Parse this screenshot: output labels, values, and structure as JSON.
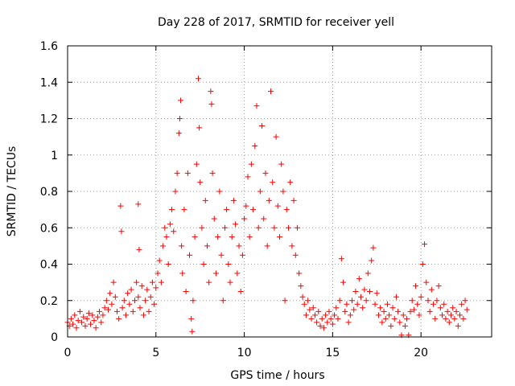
{
  "chart_data": {
    "type": "scatter",
    "title": "Day 228 of 2017, SRMTID for receiver yell",
    "xlabel": "GPS time / hours",
    "ylabel": "SRMTID / TECUs",
    "xlim": [
      0,
      24
    ],
    "ylim": [
      0,
      1.6
    ],
    "x_ticks": [
      0,
      5,
      10,
      15,
      20
    ],
    "x_tick_labels": [
      "0",
      "5",
      "10",
      "15",
      "20"
    ],
    "y_ticks": [
      0,
      0.2,
      0.4,
      0.6,
      0.8,
      1,
      1.2,
      1.4,
      1.6
    ],
    "y_tick_labels": [
      "0",
      "0.2",
      "0.4",
      "0.6",
      "0.8",
      "1",
      "1.2",
      "1.4",
      "1.6"
    ],
    "grid": true,
    "marker": "+",
    "color": "#ff0000",
    "series": [
      {
        "name": "SRMTID",
        "points": [
          [
            0.0,
            0.08
          ],
          [
            0.1,
            0.06
          ],
          [
            0.2,
            0.1
          ],
          [
            0.3,
            0.07
          ],
          [
            0.4,
            0.12
          ],
          [
            0.5,
            0.05
          ],
          [
            0.6,
            0.09
          ],
          [
            0.7,
            0.14
          ],
          [
            0.8,
            0.08
          ],
          [
            0.9,
            0.11
          ],
          [
            1.0,
            0.06
          ],
          [
            1.1,
            0.1
          ],
          [
            1.2,
            0.13
          ],
          [
            1.3,
            0.07
          ],
          [
            1.4,
            0.12
          ],
          [
            1.5,
            0.09
          ],
          [
            1.6,
            0.05
          ],
          [
            1.7,
            0.11
          ],
          [
            1.8,
            0.14
          ],
          [
            1.9,
            0.08
          ],
          [
            2.0,
            0.12
          ],
          [
            2.1,
            0.16
          ],
          [
            2.2,
            0.2
          ],
          [
            2.3,
            0.15
          ],
          [
            2.4,
            0.24
          ],
          [
            2.5,
            0.18
          ],
          [
            2.6,
            0.3
          ],
          [
            2.7,
            0.22
          ],
          [
            2.8,
            0.14
          ],
          [
            2.9,
            0.1
          ],
          [
            3.0,
            0.72
          ],
          [
            3.05,
            0.58
          ],
          [
            3.1,
            0.16
          ],
          [
            3.2,
            0.2
          ],
          [
            3.3,
            0.12
          ],
          [
            3.4,
            0.24
          ],
          [
            3.5,
            0.18
          ],
          [
            3.6,
            0.26
          ],
          [
            3.7,
            0.14
          ],
          [
            3.8,
            0.2
          ],
          [
            3.9,
            0.3
          ],
          [
            4.0,
            0.22
          ],
          [
            4.0,
            0.73
          ],
          [
            4.05,
            0.48
          ],
          [
            4.1,
            0.16
          ],
          [
            4.2,
            0.28
          ],
          [
            4.3,
            0.12
          ],
          [
            4.4,
            0.2
          ],
          [
            4.5,
            0.26
          ],
          [
            4.6,
            0.14
          ],
          [
            4.7,
            0.22
          ],
          [
            4.8,
            0.3
          ],
          [
            4.9,
            0.18
          ],
          [
            5.0,
            0.27
          ],
          [
            5.1,
            0.35
          ],
          [
            5.2,
            0.42
          ],
          [
            5.3,
            0.3
          ],
          [
            5.4,
            0.5
          ],
          [
            5.5,
            0.6
          ],
          [
            5.6,
            0.55
          ],
          [
            5.7,
            0.4
          ],
          [
            5.8,
            0.62
          ],
          [
            5.9,
            0.7
          ],
          [
            6.0,
            0.58
          ],
          [
            6.1,
            0.8
          ],
          [
            6.2,
            0.9
          ],
          [
            6.3,
            1.12
          ],
          [
            6.35,
            1.2
          ],
          [
            6.4,
            1.3
          ],
          [
            6.45,
            0.5
          ],
          [
            6.5,
            0.35
          ],
          [
            6.6,
            0.7
          ],
          [
            6.7,
            0.25
          ],
          [
            6.8,
            0.9
          ],
          [
            6.9,
            0.45
          ],
          [
            7.0,
            0.1
          ],
          [
            7.05,
            0.03
          ],
          [
            7.1,
            0.2
          ],
          [
            7.2,
            0.55
          ],
          [
            7.3,
            0.95
          ],
          [
            7.4,
            1.42
          ],
          [
            7.45,
            1.15
          ],
          [
            7.5,
            0.85
          ],
          [
            7.6,
            0.6
          ],
          [
            7.7,
            0.4
          ],
          [
            7.8,
            0.75
          ],
          [
            7.9,
            0.5
          ],
          [
            8.0,
            0.3
          ],
          [
            8.1,
            1.35
          ],
          [
            8.15,
            1.28
          ],
          [
            8.2,
            0.9
          ],
          [
            8.3,
            0.65
          ],
          [
            8.4,
            0.35
          ],
          [
            8.5,
            0.55
          ],
          [
            8.6,
            0.8
          ],
          [
            8.7,
            0.45
          ],
          [
            8.8,
            0.2
          ],
          [
            8.9,
            0.6
          ],
          [
            9.0,
            0.7
          ],
          [
            9.1,
            0.4
          ],
          [
            9.2,
            0.3
          ],
          [
            9.3,
            0.55
          ],
          [
            9.4,
            0.75
          ],
          [
            9.5,
            0.62
          ],
          [
            9.6,
            0.35
          ],
          [
            9.7,
            0.5
          ],
          [
            9.8,
            0.25
          ],
          [
            9.9,
            0.45
          ],
          [
            10.0,
            0.65
          ],
          [
            10.1,
            0.72
          ],
          [
            10.2,
            0.88
          ],
          [
            10.3,
            0.55
          ],
          [
            10.4,
            0.95
          ],
          [
            10.5,
            0.7
          ],
          [
            10.6,
            1.05
          ],
          [
            10.7,
            1.27
          ],
          [
            10.8,
            0.6
          ],
          [
            10.9,
            0.8
          ],
          [
            11.0,
            1.16
          ],
          [
            11.1,
            0.65
          ],
          [
            11.2,
            0.9
          ],
          [
            11.3,
            0.5
          ],
          [
            11.4,
            0.75
          ],
          [
            11.5,
            1.35
          ],
          [
            11.6,
            0.85
          ],
          [
            11.7,
            0.6
          ],
          [
            11.8,
            1.1
          ],
          [
            11.9,
            0.72
          ],
          [
            12.0,
            0.55
          ],
          [
            12.1,
            0.95
          ],
          [
            12.2,
            0.8
          ],
          [
            12.3,
            0.2
          ],
          [
            12.4,
            0.7
          ],
          [
            12.5,
            0.6
          ],
          [
            12.6,
            0.85
          ],
          [
            12.7,
            0.5
          ],
          [
            12.8,
            0.75
          ],
          [
            12.9,
            0.45
          ],
          [
            13.0,
            0.6
          ],
          [
            13.1,
            0.35
          ],
          [
            13.2,
            0.28
          ],
          [
            13.3,
            0.22
          ],
          [
            13.4,
            0.18
          ],
          [
            13.5,
            0.12
          ],
          [
            13.6,
            0.2
          ],
          [
            13.7,
            0.15
          ],
          [
            13.8,
            0.1
          ],
          [
            13.9,
            0.16
          ],
          [
            14.0,
            0.12
          ],
          [
            14.1,
            0.08
          ],
          [
            14.2,
            0.14
          ],
          [
            14.3,
            0.06
          ],
          [
            14.4,
            0.1
          ],
          [
            14.5,
            0.05
          ],
          [
            14.6,
            0.12
          ],
          [
            14.7,
            0.08
          ],
          [
            14.8,
            0.14
          ],
          [
            14.9,
            0.1
          ],
          [
            15.0,
            0.07
          ],
          [
            15.1,
            0.12
          ],
          [
            15.2,
            0.16
          ],
          [
            15.3,
            0.1
          ],
          [
            15.4,
            0.2
          ],
          [
            15.5,
            0.43
          ],
          [
            15.6,
            0.3
          ],
          [
            15.7,
            0.14
          ],
          [
            15.8,
            0.18
          ],
          [
            15.9,
            0.08
          ],
          [
            16.0,
            0.12
          ],
          [
            16.1,
            0.2
          ],
          [
            16.2,
            0.15
          ],
          [
            16.3,
            0.25
          ],
          [
            16.4,
            0.18
          ],
          [
            16.5,
            0.32
          ],
          [
            16.6,
            0.22
          ],
          [
            16.7,
            0.16
          ],
          [
            16.8,
            0.26
          ],
          [
            16.9,
            0.2
          ],
          [
            17.0,
            0.35
          ],
          [
            17.1,
            0.25
          ],
          [
            17.2,
            0.42
          ],
          [
            17.3,
            0.49
          ],
          [
            17.4,
            0.18
          ],
          [
            17.5,
            0.24
          ],
          [
            17.6,
            0.12
          ],
          [
            17.7,
            0.16
          ],
          [
            17.8,
            0.08
          ],
          [
            17.9,
            0.14
          ],
          [
            18.0,
            0.1
          ],
          [
            18.1,
            0.18
          ],
          [
            18.2,
            0.12
          ],
          [
            18.3,
            0.06
          ],
          [
            18.4,
            0.16
          ],
          [
            18.5,
            0.1
          ],
          [
            18.6,
            0.22
          ],
          [
            18.7,
            0.14
          ],
          [
            18.8,
            0.08
          ],
          [
            18.9,
            0.01
          ],
          [
            19.0,
            0.12
          ],
          [
            19.1,
            0.06
          ],
          [
            19.2,
            0.1
          ],
          [
            19.3,
            0.01
          ],
          [
            19.4,
            0.14
          ],
          [
            19.5,
            0.2
          ],
          [
            19.6,
            0.15
          ],
          [
            19.7,
            0.28
          ],
          [
            19.8,
            0.18
          ],
          [
            19.9,
            0.12
          ],
          [
            20.0,
            0.22
          ],
          [
            20.1,
            0.4
          ],
          [
            20.2,
            0.51
          ],
          [
            20.3,
            0.3
          ],
          [
            20.4,
            0.2
          ],
          [
            20.5,
            0.14
          ],
          [
            20.6,
            0.26
          ],
          [
            20.7,
            0.18
          ],
          [
            20.8,
            0.1
          ],
          [
            20.9,
            0.2
          ],
          [
            21.0,
            0.28
          ],
          [
            21.1,
            0.16
          ],
          [
            21.2,
            0.12
          ],
          [
            21.3,
            0.18
          ],
          [
            21.4,
            0.1
          ],
          [
            21.5,
            0.14
          ],
          [
            21.6,
            0.08
          ],
          [
            21.7,
            0.12
          ],
          [
            21.8,
            0.16
          ],
          [
            21.9,
            0.1
          ],
          [
            22.0,
            0.14
          ],
          [
            22.1,
            0.06
          ],
          [
            22.2,
            0.12
          ],
          [
            22.3,
            0.18
          ],
          [
            22.4,
            0.1
          ],
          [
            22.5,
            0.2
          ],
          [
            22.6,
            0.15
          ]
        ]
      }
    ]
  }
}
